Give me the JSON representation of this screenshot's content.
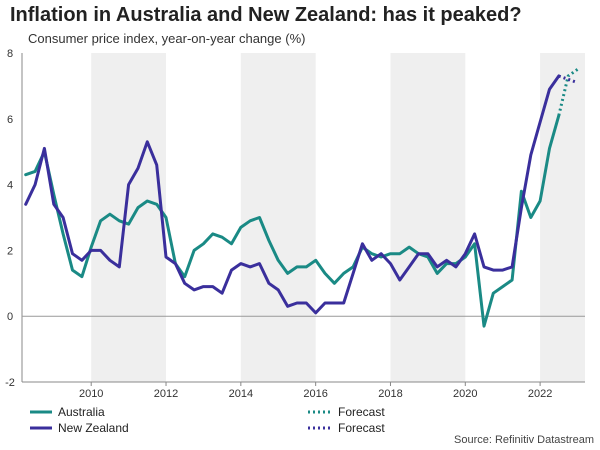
{
  "chart_data": {
    "type": "line",
    "title": "Inflation in Australia and New Zealand: has it peaked?",
    "subtitle": "Consumer price index, year-on-year change (%)",
    "source": "Source: Refinitiv Datastream",
    "xlabel": "",
    "ylabel": "",
    "xlim": [
      2008.15,
      2023.2
    ],
    "ylim": [
      -2,
      8
    ],
    "y_ticks": [
      -2,
      0,
      2,
      4,
      6,
      8
    ],
    "x_ticks": [
      2010,
      2012,
      2014,
      2016,
      2018,
      2020,
      2022
    ],
    "shaded_periods": [
      [
        2010,
        2012
      ],
      [
        2014,
        2016
      ],
      [
        2018,
        2020
      ],
      [
        2022,
        2023.2
      ]
    ],
    "series": [
      {
        "name": "Australia",
        "color": "#1a8a85",
        "style": "solid",
        "x": [
          2008.25,
          2008.5,
          2008.75,
          2009.0,
          2009.25,
          2009.5,
          2009.75,
          2010.0,
          2010.25,
          2010.5,
          2010.75,
          2011.0,
          2011.25,
          2011.5,
          2011.75,
          2012.0,
          2012.25,
          2012.5,
          2012.75,
          2013.0,
          2013.25,
          2013.5,
          2013.75,
          2014.0,
          2014.25,
          2014.5,
          2014.75,
          2015.0,
          2015.25,
          2015.5,
          2015.75,
          2016.0,
          2016.25,
          2016.5,
          2016.75,
          2017.0,
          2017.25,
          2017.5,
          2017.75,
          2018.0,
          2018.25,
          2018.5,
          2018.75,
          2019.0,
          2019.25,
          2019.5,
          2019.75,
          2020.0,
          2020.25,
          2020.5,
          2020.75,
          2021.0,
          2021.25,
          2021.5,
          2021.75,
          2022.0,
          2022.25,
          2022.5
        ],
        "values": [
          4.3,
          4.4,
          5.0,
          3.7,
          2.5,
          1.4,
          1.2,
          2.1,
          2.9,
          3.1,
          2.9,
          2.8,
          3.3,
          3.5,
          3.4,
          3.0,
          1.6,
          1.2,
          2.0,
          2.2,
          2.5,
          2.4,
          2.2,
          2.7,
          2.9,
          3.0,
          2.3,
          1.7,
          1.3,
          1.5,
          1.5,
          1.7,
          1.3,
          1.0,
          1.3,
          1.5,
          2.1,
          1.9,
          1.8,
          1.9,
          1.9,
          2.1,
          1.9,
          1.8,
          1.3,
          1.6,
          1.6,
          1.8,
          2.2,
          -0.3,
          0.7,
          0.9,
          1.1,
          3.8,
          3.0,
          3.5,
          5.1,
          6.1
        ]
      },
      {
        "name": "Forecast",
        "color": "#1a8a85",
        "style": "dotted",
        "x": [
          2022.5,
          2022.75,
          2023.0
        ],
        "values": [
          6.1,
          7.3,
          7.5
        ]
      },
      {
        "name": "New Zealand",
        "color": "#3a2f9c",
        "style": "solid",
        "x": [
          2008.25,
          2008.5,
          2008.75,
          2009.0,
          2009.25,
          2009.5,
          2009.75,
          2010.0,
          2010.25,
          2010.5,
          2010.75,
          2011.0,
          2011.25,
          2011.5,
          2011.75,
          2012.0,
          2012.25,
          2012.5,
          2012.75,
          2013.0,
          2013.25,
          2013.5,
          2013.75,
          2014.0,
          2014.25,
          2014.5,
          2014.75,
          2015.0,
          2015.25,
          2015.5,
          2015.75,
          2016.0,
          2016.25,
          2016.5,
          2016.75,
          2017.0,
          2017.25,
          2017.5,
          2017.75,
          2018.0,
          2018.25,
          2018.5,
          2018.75,
          2019.0,
          2019.25,
          2019.5,
          2019.75,
          2020.0,
          2020.25,
          2020.5,
          2020.75,
          2021.0,
          2021.25,
          2021.5,
          2021.75,
          2022.0,
          2022.25,
          2022.5
        ],
        "values": [
          3.4,
          4.0,
          5.1,
          3.4,
          3.0,
          1.9,
          1.7,
          2.0,
          2.0,
          1.7,
          1.5,
          4.0,
          4.5,
          5.3,
          4.6,
          1.8,
          1.6,
          1.0,
          0.8,
          0.9,
          0.9,
          0.7,
          1.4,
          1.6,
          1.5,
          1.6,
          1.0,
          0.8,
          0.3,
          0.4,
          0.4,
          0.1,
          0.4,
          0.4,
          0.4,
          1.3,
          2.2,
          1.7,
          1.9,
          1.6,
          1.1,
          1.5,
          1.9,
          1.9,
          1.5,
          1.7,
          1.5,
          1.9,
          2.5,
          1.5,
          1.4,
          1.4,
          1.5,
          3.3,
          4.9,
          5.9,
          6.9,
          7.3
        ]
      },
      {
        "name": "Forecast",
        "color": "#3a2f9c",
        "style": "dotted",
        "x": [
          2022.5,
          2022.75,
          2023.0
        ],
        "values": [
          7.3,
          7.2,
          7.1
        ]
      }
    ]
  },
  "legend": {
    "australia": "Australia",
    "new_zealand": "New Zealand",
    "au_forecast": "Forecast",
    "nz_forecast": "Forecast"
  },
  "colors": {
    "australia": "#1a8a85",
    "new_zealand": "#3a2f9c",
    "shade": "#efefef",
    "axis": "#888888"
  }
}
